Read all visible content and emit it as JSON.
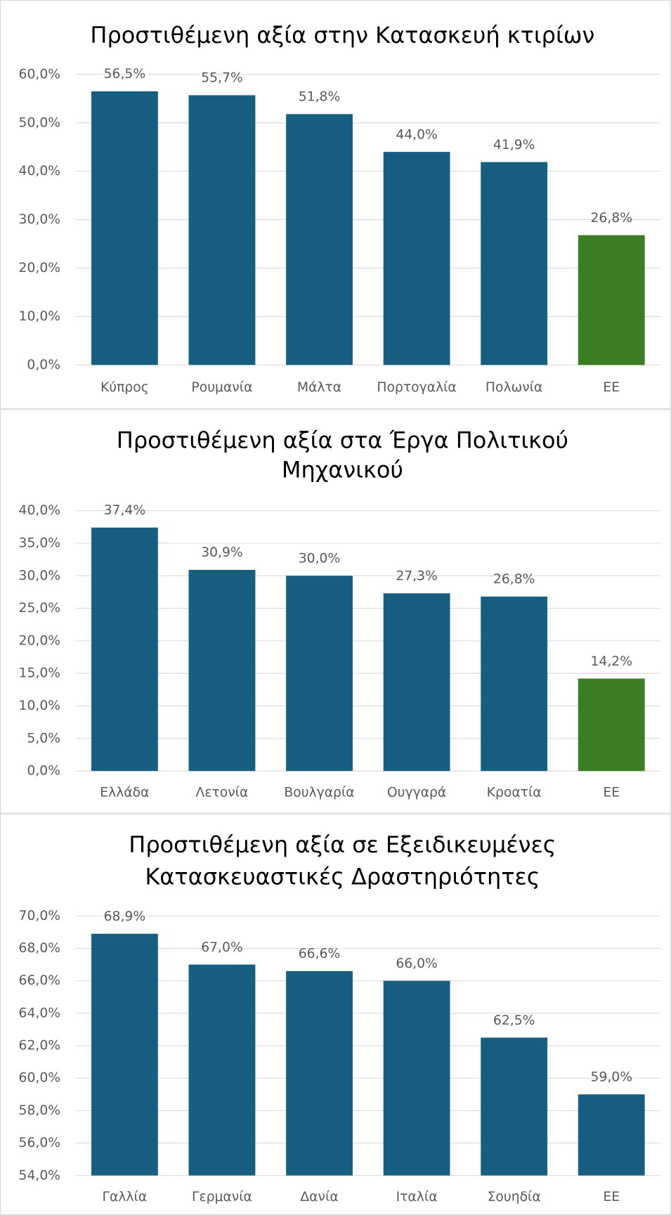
{
  "chart_data": [
    {
      "type": "bar",
      "title": [
        "Προστιθέμενη αξία στην Κατασκευή κτιρίων"
      ],
      "categories": [
        "Κύπρος",
        "Ρουμανία",
        "Μάλτα",
        "Πορτογαλία",
        "Πολωνία",
        "ΕΕ"
      ],
      "values": [
        56.5,
        55.7,
        51.8,
        44.0,
        41.9,
        26.8
      ],
      "value_labels": [
        "56,5%",
        "55,7%",
        "51,8%",
        "44,0%",
        "41,9%",
        "26,8%"
      ],
      "colors": [
        "#175f80",
        "#175f80",
        "#175f80",
        "#175f80",
        "#175f80",
        "#3b7d23"
      ],
      "ylim": [
        0,
        60
      ],
      "yticks": [
        {
          "value": 0,
          "label": "0,0%"
        },
        {
          "value": 10,
          "label": "10,0%"
        },
        {
          "value": 20,
          "label": "20,0%"
        },
        {
          "value": 30,
          "label": "30,0%"
        },
        {
          "value": 40,
          "label": "40,0%"
        },
        {
          "value": 50,
          "label": "50,0%"
        },
        {
          "value": 60,
          "label": "60,0%"
        }
      ],
      "grid": true
    },
    {
      "type": "bar",
      "title": [
        "Προστιθέμενη αξία στα Έργα Πολιτικού",
        "Μηχανικού"
      ],
      "categories": [
        "Ελλάδα",
        "Λετονία",
        "Βουλγαρία",
        "Ουγγαρά",
        "Κροατία",
        "ΕΕ"
      ],
      "values": [
        37.4,
        30.9,
        30.0,
        27.3,
        26.8,
        14.2
      ],
      "value_labels": [
        "37,4%",
        "30,9%",
        "30,0%",
        "27,3%",
        "26,8%",
        "14,2%"
      ],
      "colors": [
        "#175f80",
        "#175f80",
        "#175f80",
        "#175f80",
        "#175f80",
        "#3b7d23"
      ],
      "ylim": [
        0,
        40
      ],
      "yticks": [
        {
          "value": 0,
          "label": "0,0%"
        },
        {
          "value": 5,
          "label": "5,0%"
        },
        {
          "value": 10,
          "label": "10,0%"
        },
        {
          "value": 15,
          "label": "15,0%"
        },
        {
          "value": 20,
          "label": "20,0%"
        },
        {
          "value": 25,
          "label": "25,0%"
        },
        {
          "value": 30,
          "label": "30,0%"
        },
        {
          "value": 35,
          "label": "35,0%"
        },
        {
          "value": 40,
          "label": "40,0%"
        }
      ],
      "grid": true
    },
    {
      "type": "bar",
      "title": [
        "Προστιθέμενη αξία σε Εξειδικευμένες",
        "Κατασκευαστικές Δραστηριότητες"
      ],
      "categories": [
        "Γαλλία",
        "Γερμανία",
        "Δανία",
        "Ιταλία",
        "Σουηδία",
        "ΕΕ"
      ],
      "values": [
        68.9,
        67.0,
        66.6,
        66.0,
        62.5,
        59.0
      ],
      "value_labels": [
        "68,9%",
        "67,0%",
        "66,6%",
        "66,0%",
        "62,5%",
        "59,0%"
      ],
      "colors": [
        "#175f80",
        "#175f80",
        "#175f80",
        "#175f80",
        "#175f80",
        "#175f80"
      ],
      "ylim": [
        54,
        70
      ],
      "yticks": [
        {
          "value": 54,
          "label": "54,0%"
        },
        {
          "value": 56,
          "label": "56,0%"
        },
        {
          "value": 58,
          "label": "58,0%"
        },
        {
          "value": 60,
          "label": "60,0%"
        },
        {
          "value": 62,
          "label": "62,0%"
        },
        {
          "value": 64,
          "label": "64,0%"
        },
        {
          "value": 66,
          "label": "66,0%"
        },
        {
          "value": 68,
          "label": "68,0%"
        },
        {
          "value": 70,
          "label": "70,0%"
        }
      ],
      "grid": true
    }
  ]
}
